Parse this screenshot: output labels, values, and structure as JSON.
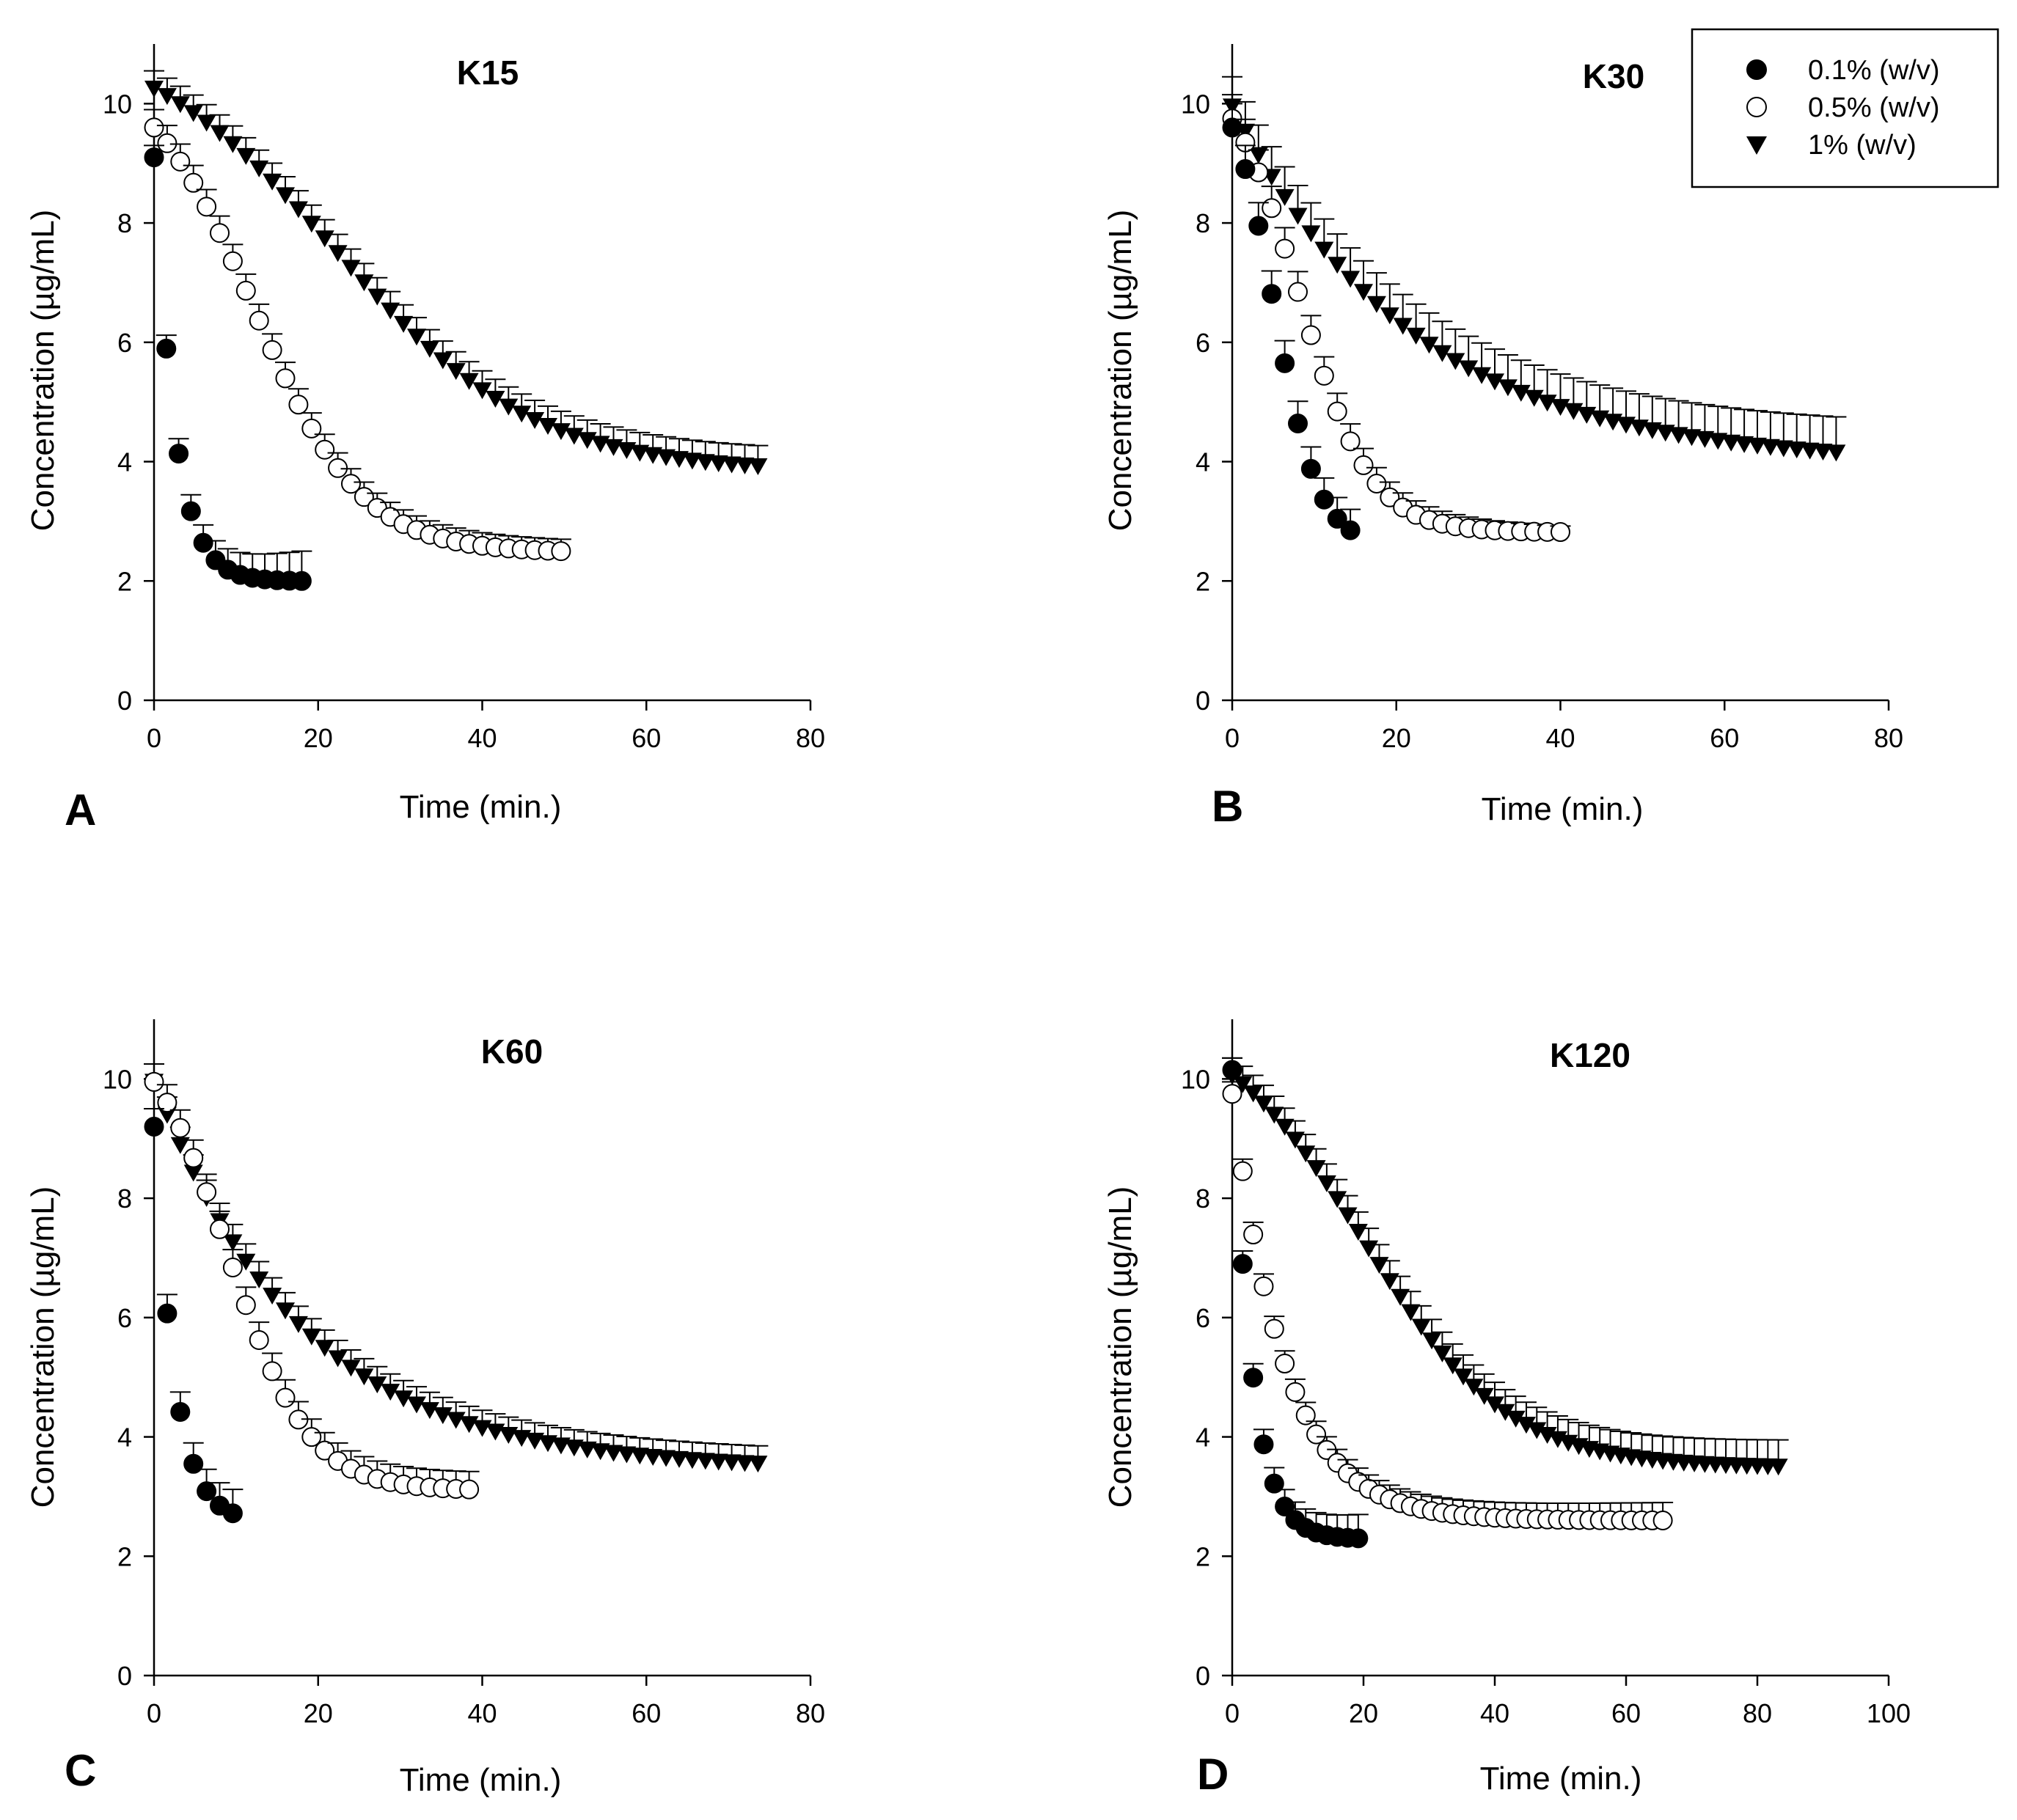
{
  "legend": {
    "entries": [
      {
        "series_key": "s01",
        "label": "0.1% (w/v)",
        "marker": "filled-circle"
      },
      {
        "series_key": "s05",
        "label": "0.5% (w/v)",
        "marker": "open-circle"
      },
      {
        "series_key": "s1",
        "label": "1% (w/v)",
        "marker": "filled-triangle-down"
      }
    ]
  },
  "chart_data": [
    {
      "type": "scatter",
      "panel_letter": "A",
      "title": "K15",
      "xlabel": "Time (min.)",
      "ylabel": "Concentration (µg/mL)",
      "xlim": [
        0,
        80
      ],
      "xticks": [
        0,
        20,
        40,
        60,
        80
      ],
      "ylim": [
        0,
        11
      ],
      "yticks": [
        0,
        2,
        4,
        6,
        8,
        10
      ],
      "error_bars": "upper",
      "series": [
        {
          "key": "s01",
          "name": "0.1% (w/v)",
          "x_start": 0,
          "x_step": 1.5,
          "n": 13,
          "y_start": 9.1,
          "y_end": 2.0,
          "tau": 2.5,
          "err_start": 0.2,
          "err_end": 0.5
        },
        {
          "key": "s05",
          "name": "0.5% (w/v)",
          "x_start": 0,
          "x_step": 1.6,
          "n": 32,
          "y_start": 9.6,
          "y_end": 2.5,
          "tau": 12,
          "sigmoid": true,
          "err_start": 0.3,
          "err_end": 0.2
        },
        {
          "key": "s1",
          "name": "1% (w/v)",
          "x_start": 0,
          "x_step": 1.6,
          "n": 47,
          "y_start": 10.25,
          "y_end": 3.92,
          "tau": 22,
          "sigmoid": true,
          "err_start": 0.3,
          "err_end": 0.35
        }
      ]
    },
    {
      "type": "scatter",
      "panel_letter": "B",
      "title": "K30",
      "xlabel": "Time (min.)",
      "ylabel": "Concentration (µg/mL)",
      "xlim": [
        0,
        80
      ],
      "xticks": [
        0,
        20,
        40,
        60,
        80
      ],
      "ylim": [
        0,
        11
      ],
      "yticks": [
        0,
        2,
        4,
        6,
        8,
        10
      ],
      "error_bars": "upper",
      "series": [
        {
          "key": "s01",
          "name": "0.1% (w/v)",
          "x_start": 0,
          "x_step": 1.6,
          "n": 10,
          "y_start": 9.6,
          "y_end": 2.85,
          "tau": 5,
          "sigmoid": true,
          "err_start": 0.4,
          "err_end": 0.35
        },
        {
          "key": "s05",
          "name": "0.5% (w/v)",
          "x_start": 0,
          "x_step": 1.6,
          "n": 26,
          "y_start": 9.75,
          "y_end": 2.82,
          "tau": 8,
          "sigmoid": true,
          "err_start": 0.4,
          "err_end": 0.1
        },
        {
          "key": "s1",
          "name": "1% (w/v)",
          "x_start": 0,
          "x_step": 1.6,
          "n": 47,
          "y_start": 9.95,
          "y_end": 4.15,
          "tau": 22,
          "err_start": 0.5,
          "err_end": 0.6
        }
      ]
    },
    {
      "type": "scatter",
      "panel_letter": "C",
      "title": "K60",
      "xlabel": "Time (min.)",
      "ylabel": "Concentration (µg/mL)",
      "xlim": [
        0,
        80
      ],
      "xticks": [
        0,
        20,
        40,
        60,
        80
      ],
      "ylim": [
        0,
        11
      ],
      "yticks": [
        0,
        2,
        4,
        6,
        8,
        10
      ],
      "error_bars": "upper",
      "series": [
        {
          "key": "s01",
          "name": "0.1% (w/v)",
          "x_start": 0,
          "x_step": 1.6,
          "n": 7,
          "y_start": 9.2,
          "y_end": 2.72,
          "tau": 2.5,
          "err_start": 0.3,
          "err_end": 0.4
        },
        {
          "key": "s05",
          "name": "0.5% (w/v)",
          "x_start": 0,
          "x_step": 1.6,
          "n": 25,
          "y_start": 9.95,
          "y_end": 3.12,
          "tau": 9,
          "sigmoid": true,
          "err_start": 0.3,
          "err_end": 0.3
        },
        {
          "key": "s1",
          "name": "1% (w/v)",
          "x_start": 0,
          "x_step": 1.6,
          "n": 47,
          "y_start": 9.95,
          "y_end": 3.55,
          "tau": 18,
          "err_start": 0.3,
          "err_end": 0.3
        }
      ]
    },
    {
      "type": "scatter",
      "panel_letter": "D",
      "title": "K120",
      "xlabel": "Time (min.)",
      "ylabel": "Concentration (µg/mL)",
      "xlim": [
        0,
        100
      ],
      "xticks": [
        0,
        20,
        40,
        60,
        80,
        100
      ],
      "ylim": [
        0,
        11
      ],
      "yticks": [
        0,
        2,
        4,
        6,
        8,
        10
      ],
      "error_bars": "upper",
      "series": [
        {
          "key": "s01",
          "name": "0.1% (w/v)",
          "x_start": 0,
          "x_step": 1.6,
          "n": 13,
          "y_start": 10.15,
          "y_end": 2.3,
          "tau": 3,
          "err_start": 0.2,
          "err_end": 0.4
        },
        {
          "key": "s05",
          "name": "0.5% (w/v)",
          "x_start": 0,
          "x_step": 1.6,
          "n": 42,
          "y_start": 9.75,
          "y_end": 2.6,
          "tau": 8,
          "err_start": 0.2,
          "err_end": 0.3
        },
        {
          "key": "s1",
          "name": "1% (w/v)",
          "x_start": 0,
          "x_step": 1.6,
          "n": 53,
          "y_start": 10.05,
          "y_end": 3.5,
          "tau": 20,
          "sigmoid": true,
          "err_start": 0.3,
          "err_end": 0.45
        }
      ]
    }
  ]
}
